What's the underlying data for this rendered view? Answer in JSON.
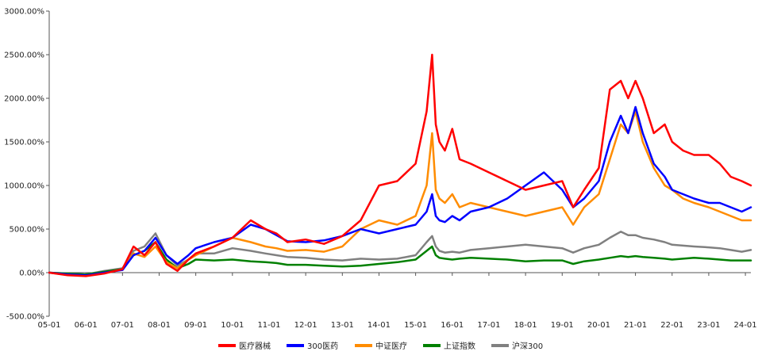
{
  "chart_data": {
    "type": "line",
    "title": "",
    "xlabel": "",
    "ylabel": "",
    "ylim": [
      -500,
      3000
    ],
    "y_ticks": [
      -500,
      0,
      500,
      1000,
      1500,
      2000,
      2500,
      3000
    ],
    "y_tick_labels": [
      "-500.00%",
      "0.00%",
      "500.00%",
      "1000.00%",
      "1500.00%",
      "2000.00%",
      "2500.00%",
      "3000.00%"
    ],
    "x_ticks": [
      0,
      1,
      2,
      3,
      4,
      5,
      6,
      7,
      8,
      9,
      10,
      11,
      12,
      13,
      14,
      15,
      16,
      17,
      18,
      19
    ],
    "x_tick_labels": [
      "05-01",
      "06-01",
      "07-01",
      "08-01",
      "09-01",
      "10-01",
      "11-01",
      "12-01",
      "13-01",
      "14-01",
      "15-01",
      "16-01",
      "17-01",
      "18-01",
      "19-01",
      "20-01",
      "21-01",
      "22-01",
      "23-01",
      "24-01"
    ],
    "xlim": [
      0,
      19.15
    ],
    "grid": false,
    "legend_position": "bottom",
    "x": [
      0,
      0.5,
      1,
      1.5,
      2,
      2.3,
      2.6,
      2.9,
      3.2,
      3.5,
      3.8,
      4,
      4.5,
      5,
      5.5,
      5.9,
      6.2,
      6.5,
      7,
      7.5,
      8,
      8.5,
      9,
      9.5,
      10,
      10.3,
      10.45,
      10.55,
      10.65,
      10.8,
      11,
      11.2,
      11.5,
      12,
      12.5,
      13,
      13.5,
      14,
      14.3,
      14.6,
      15,
      15.3,
      15.6,
      15.8,
      16,
      16.2,
      16.5,
      16.8,
      17,
      17.3,
      17.6,
      18,
      18.3,
      18.6,
      18.9,
      19.15
    ],
    "series": [
      {
        "name": "医疗器械",
        "color": "#ff0000",
        "values": [
          0,
          -30,
          -40,
          -10,
          40,
          300,
          200,
          350,
          100,
          20,
          150,
          220,
          300,
          400,
          600,
          500,
          450,
          350,
          380,
          330,
          420,
          600,
          1000,
          1050,
          1250,
          1850,
          2500,
          1700,
          1500,
          1400,
          1650,
          1300,
          1250,
          1150,
          1050,
          950,
          1000,
          1050,
          750,
          950,
          1200,
          2100,
          2200,
          2000,
          2200,
          2000,
          1600,
          1700,
          1500,
          1400,
          1350,
          1350,
          1250,
          1100,
          1050,
          1000
        ]
      },
      {
        "name": "300医药",
        "color": "#0000ff",
        "values": [
          0,
          -20,
          -30,
          0,
          30,
          200,
          250,
          400,
          200,
          100,
          200,
          280,
          350,
          400,
          550,
          500,
          430,
          360,
          350,
          370,
          420,
          500,
          450,
          500,
          550,
          700,
          900,
          650,
          600,
          580,
          650,
          600,
          700,
          750,
          850,
          1000,
          1150,
          950,
          750,
          850,
          1050,
          1500,
          1800,
          1600,
          1900,
          1600,
          1250,
          1100,
          950,
          900,
          850,
          800,
          800,
          750,
          700,
          750
        ]
      },
      {
        "name": "中证医疗",
        "color": "#ff8c00",
        "values": [
          0,
          -25,
          -35,
          -5,
          35,
          220,
          180,
          300,
          120,
          50,
          150,
          200,
          300,
          400,
          350,
          300,
          280,
          250,
          260,
          240,
          300,
          500,
          600,
          550,
          650,
          1000,
          1600,
          950,
          850,
          800,
          900,
          750,
          800,
          750,
          700,
          650,
          700,
          750,
          550,
          750,
          900,
          1300,
          1700,
          1600,
          1850,
          1500,
          1200,
          1000,
          950,
          850,
          800,
          750,
          700,
          650,
          600,
          600
        ]
      },
      {
        "name": "上证指数",
        "color": "#008000",
        "values": [
          0,
          -10,
          -20,
          10,
          40,
          200,
          250,
          350,
          150,
          50,
          100,
          150,
          140,
          150,
          130,
          120,
          110,
          90,
          90,
          80,
          70,
          80,
          100,
          120,
          150,
          250,
          300,
          200,
          170,
          160,
          150,
          160,
          170,
          160,
          150,
          130,
          140,
          140,
          100,
          130,
          150,
          170,
          190,
          180,
          190,
          180,
          170,
          160,
          150,
          160,
          170,
          160,
          150,
          140,
          140,
          140
        ]
      },
      {
        "name": "沪深300",
        "color": "#808080",
        "values": [
          0,
          -10,
          -20,
          20,
          50,
          250,
          300,
          450,
          200,
          80,
          150,
          220,
          220,
          280,
          250,
          220,
          200,
          180,
          170,
          150,
          140,
          160,
          150,
          160,
          200,
          350,
          420,
          300,
          250,
          230,
          240,
          230,
          260,
          280,
          300,
          320,
          300,
          280,
          230,
          280,
          320,
          400,
          470,
          430,
          430,
          400,
          380,
          350,
          320,
          310,
          300,
          290,
          280,
          260,
          240,
          260
        ]
      }
    ]
  }
}
